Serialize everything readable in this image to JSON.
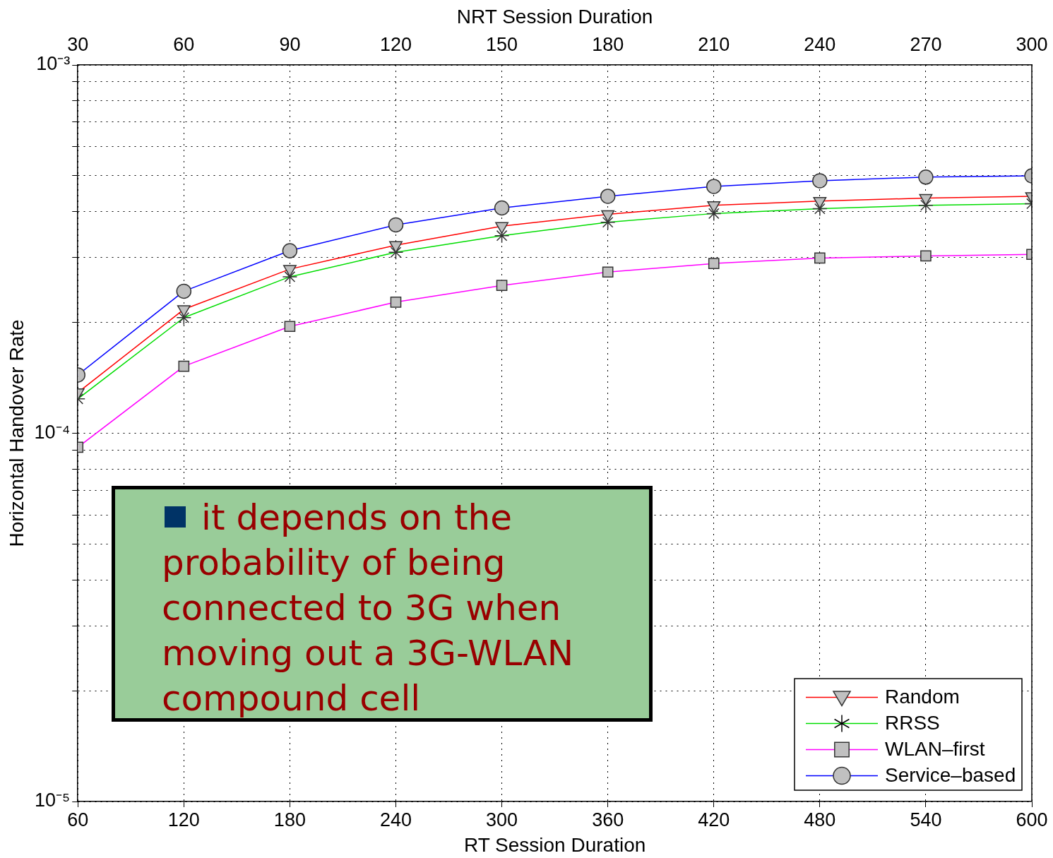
{
  "chart_data": {
    "type": "line",
    "xlabel": "RT Session Duration",
    "x2label": "NRT Session Duration",
    "ylabel": "Horizontal Handover Rate",
    "x": [
      60,
      120,
      180,
      240,
      300,
      360,
      420,
      480,
      540,
      600
    ],
    "xlim": [
      60,
      600
    ],
    "xticks": [
      60,
      120,
      180,
      240,
      300,
      360,
      420,
      480,
      540,
      600
    ],
    "x2lim": [
      30,
      300
    ],
    "x2ticks": [
      30,
      60,
      90,
      120,
      150,
      180,
      210,
      240,
      270,
      300
    ],
    "ylim": [
      1e-05,
      0.001
    ],
    "log": "y",
    "yticks": [
      {
        "value": 1e-05,
        "label": "10⁻⁵"
      },
      {
        "value": 2e-05,
        "label": null
      },
      {
        "value": 3e-05,
        "label": null
      },
      {
        "value": 4e-05,
        "label": null
      },
      {
        "value": 5e-05,
        "label": null
      },
      {
        "value": 6e-05,
        "label": null
      },
      {
        "value": 7e-05,
        "label": null
      },
      {
        "value": 8e-05,
        "label": null
      },
      {
        "value": 9e-05,
        "label": null
      },
      {
        "value": 0.0001,
        "label": "10⁻⁴"
      },
      {
        "value": 0.0002,
        "label": null
      },
      {
        "value": 0.0003,
        "label": null
      },
      {
        "value": 0.0004,
        "label": null
      },
      {
        "value": 0.0005,
        "label": null
      },
      {
        "value": 0.0006,
        "label": null
      },
      {
        "value": 0.0007,
        "label": null
      },
      {
        "value": 0.0008,
        "label": null
      },
      {
        "value": 0.0009,
        "label": null
      },
      {
        "value": 0.001,
        "label": "10⁻³"
      }
    ],
    "grid": true,
    "line_style": "solid",
    "legend": "bottom right",
    "series": [
      {
        "name": "Random",
        "color": "#ff0000",
        "marker": "triangle",
        "values": [
          0.000129,
          0.000217,
          0.000279,
          0.000324,
          0.000365,
          0.000393,
          0.000416,
          0.000427,
          0.000435,
          0.00044
        ]
      },
      {
        "name": "RRSS",
        "color": "#00dd00",
        "marker": "cross",
        "values": [
          0.000124,
          0.000206,
          0.000266,
          0.00031,
          0.000344,
          0.000374,
          0.000395,
          0.000407,
          0.000416,
          0.00042
        ]
      },
      {
        "name": "WLAN–first",
        "color": "#ff00ff",
        "marker": "square",
        "values": [
          9.16e-05,
          0.000152,
          0.000195,
          0.000227,
          0.000252,
          0.000274,
          0.000289,
          0.000299,
          0.000303,
          0.000306
        ]
      },
      {
        "name": "Service–based",
        "color": "#0000ff",
        "marker": "circle",
        "values": [
          0.000144,
          0.000243,
          0.000313,
          0.000368,
          0.000409,
          0.00044,
          0.000468,
          0.000485,
          0.000496,
          0.0005
        ]
      }
    ],
    "annotations": [
      "it depends on the probability of being connected to 3G when moving out a 3G-WLAN compound cell"
    ]
  }
}
